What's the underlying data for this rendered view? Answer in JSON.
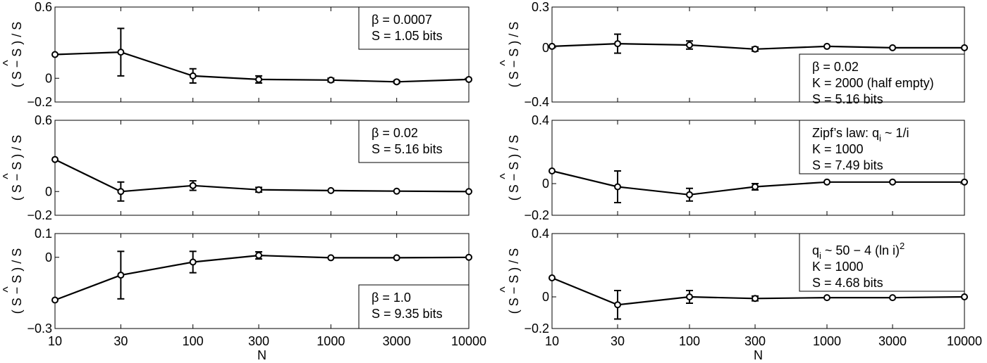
{
  "chart_data": [
    {
      "type": "line",
      "panel": "left-top",
      "x": [
        10,
        30,
        100,
        300,
        1000,
        3000,
        10000
      ],
      "y": [
        0.2,
        0.22,
        0.02,
        -0.01,
        -0.015,
        -0.03,
        -0.01
      ],
      "yerr": [
        0,
        0.2,
        0.06,
        0.03,
        0.015,
        0.01,
        0
      ],
      "ylim": [
        -0.2,
        0.6
      ],
      "yticks": [
        "0.6",
        "0",
        "−0.2"
      ],
      "ytick_values": [
        0.6,
        0,
        -0.2
      ],
      "xscale": "log",
      "legend": [
        "β = 0.0007",
        "S = 1.05 bits"
      ],
      "legend_position": "top-right"
    },
    {
      "type": "line",
      "panel": "left-middle",
      "x": [
        10,
        30,
        100,
        300,
        1000,
        3000,
        10000
      ],
      "y": [
        0.27,
        0.0,
        0.05,
        0.015,
        0.008,
        0.003,
        0.0
      ],
      "yerr": [
        0,
        0.08,
        0.04,
        0.02,
        0,
        0,
        0
      ],
      "ylim": [
        -0.2,
        0.6
      ],
      "yticks": [
        "0.6",
        "0",
        "−0.2"
      ],
      "ytick_values": [
        0.6,
        0,
        -0.2
      ],
      "xscale": "log",
      "legend": [
        "β = 0.02",
        "S = 5.16 bits"
      ],
      "legend_position": "top-right"
    },
    {
      "type": "line",
      "panel": "left-bottom",
      "x": [
        10,
        30,
        100,
        300,
        1000,
        3000,
        10000
      ],
      "y": [
        -0.18,
        -0.075,
        -0.02,
        0.008,
        -0.002,
        -0.002,
        0.0
      ],
      "yerr": [
        0,
        0.1,
        0.045,
        0.015,
        0,
        0,
        0
      ],
      "ylim": [
        -0.3,
        0.1
      ],
      "yticks": [
        "0.1",
        "0",
        "−0.3"
      ],
      "ytick_values": [
        0.1,
        0,
        -0.3
      ],
      "xscale": "log",
      "legend": [
        "β = 1.0",
        "S = 9.35 bits"
      ],
      "legend_position": "bottom-right"
    },
    {
      "type": "line",
      "panel": "right-top",
      "x": [
        10,
        30,
        100,
        300,
        1000,
        3000,
        10000
      ],
      "y": [
        0.01,
        0.03,
        0.02,
        -0.01,
        0.01,
        0.0,
        0.0
      ],
      "yerr": [
        0,
        0.07,
        0.03,
        0.015,
        0,
        0,
        0
      ],
      "ylim": [
        -0.4,
        0.3
      ],
      "yticks": [
        "0.3",
        "0",
        "−0.4"
      ],
      "ytick_values": [
        0.3,
        0,
        -0.4
      ],
      "xscale": "log",
      "legend": [
        "β = 0.02",
        "K = 2000 (half empty)",
        "S = 5.16 bits"
      ],
      "legend_position": "bottom-right"
    },
    {
      "type": "line",
      "panel": "right-middle",
      "x": [
        10,
        30,
        100,
        300,
        1000,
        3000,
        10000
      ],
      "y": [
        0.08,
        -0.02,
        -0.07,
        -0.02,
        0.01,
        0.01,
        0.01
      ],
      "yerr": [
        0,
        0.1,
        0.04,
        0.02,
        0,
        0,
        0
      ],
      "ylim": [
        -0.2,
        0.4
      ],
      "yticks": [
        "0.4",
        "0",
        "−0.2"
      ],
      "ytick_values": [
        0.4,
        0,
        -0.2
      ],
      "xscale": "log",
      "legend_zipf": {
        "prefix": "Zipf’s law: q",
        "sub": "i",
        "suffix": " ~ 1/i"
      },
      "legend": [
        "K = 1000",
        "S = 7.49 bits"
      ],
      "legend_position": "top-right"
    },
    {
      "type": "line",
      "panel": "right-bottom",
      "x": [
        10,
        30,
        100,
        300,
        1000,
        3000,
        10000
      ],
      "y": [
        0.12,
        -0.05,
        0.0,
        -0.01,
        -0.005,
        -0.005,
        0.0
      ],
      "yerr": [
        0,
        0.09,
        0.04,
        0.015,
        0,
        0,
        0
      ],
      "ylim": [
        -0.2,
        0.4
      ],
      "yticks": [
        "0.4",
        "0",
        "−0.2"
      ],
      "ytick_values": [
        0.4,
        0,
        -0.2
      ],
      "xscale": "log",
      "legend_formula": {
        "prefix": "q",
        "sub": "i",
        "mid": " ~ 50 − 4 (ln i)",
        "sup": "2"
      },
      "legend": [
        "K = 1000",
        "S = 4.68 bits"
      ],
      "legend_position": "top-right"
    }
  ],
  "axes": {
    "ylabel": "( S − S ) / S",
    "ylabel_hat": "^",
    "xlabel": "N",
    "xticks": [
      "10",
      "30",
      "100",
      "300",
      "1000",
      "3000",
      "10000"
    ],
    "xtick_values": [
      10,
      30,
      100,
      300,
      1000,
      3000,
      10000
    ]
  }
}
